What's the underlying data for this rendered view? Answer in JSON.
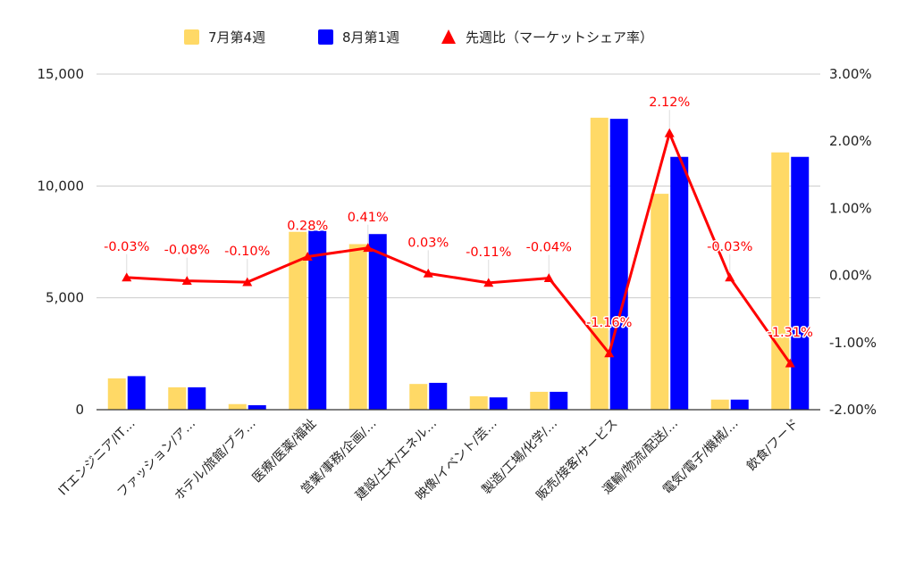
{
  "chart_data": {
    "type": "bar",
    "categories": [
      "ITエンジニア/IT…",
      "ファッション/ア…",
      "ホテル/旅館/ブラ…",
      "医療/医薬/福祉",
      "営業/事務/企画/…",
      "建設/土木/エネル…",
      "映像/イベント/芸…",
      "製造/工場/化学/…",
      "販売/接客/サービス",
      "運輸/物流/配送/…",
      "電気/電子/機械/…",
      "飲食/フード"
    ],
    "series": [
      {
        "name": "7月第4週",
        "type": "bar",
        "axis": "left",
        "color": "#FFD966",
        "values": [
          1400,
          1000,
          250,
          7950,
          7400,
          1150,
          600,
          800,
          13050,
          9650,
          450,
          11500
        ]
      },
      {
        "name": "8月第1週",
        "type": "bar",
        "axis": "left",
        "color": "#0000FF",
        "values": [
          1500,
          1000,
          200,
          8000,
          7850,
          1200,
          550,
          800,
          13000,
          11300,
          450,
          11300
        ]
      },
      {
        "name": "先週比（マーケットシェア率）",
        "type": "line",
        "axis": "right",
        "color": "#FF0000",
        "marker": "triangle",
        "values": [
          -0.03,
          -0.08,
          -0.1,
          0.28,
          0.41,
          0.03,
          -0.11,
          -0.04,
          -1.16,
          2.12,
          -0.03,
          -1.31
        ],
        "labels": [
          "-0.03%",
          "-0.08%",
          "-0.10%",
          "0.28%",
          "0.41%",
          "0.03%",
          "-0.11%",
          "-0.04%",
          "-1.16%",
          "2.12%",
          "-0.03%",
          "-1.31%"
        ]
      }
    ],
    "y_left": {
      "range": [
        0,
        15000
      ],
      "ticks": [
        "0",
        "5,000",
        "10,000",
        "15,000"
      ],
      "tick_values": [
        0,
        5000,
        10000,
        15000
      ]
    },
    "y_right": {
      "range": [
        -2,
        3
      ],
      "ticks": [
        "-2.00%",
        "-1.00%",
        "0.00%",
        "1.00%",
        "2.00%",
        "3.00%"
      ],
      "tick_values": [
        -2,
        -1,
        0,
        1,
        2,
        3
      ]
    },
    "grid": true,
    "legend_position": "top"
  }
}
